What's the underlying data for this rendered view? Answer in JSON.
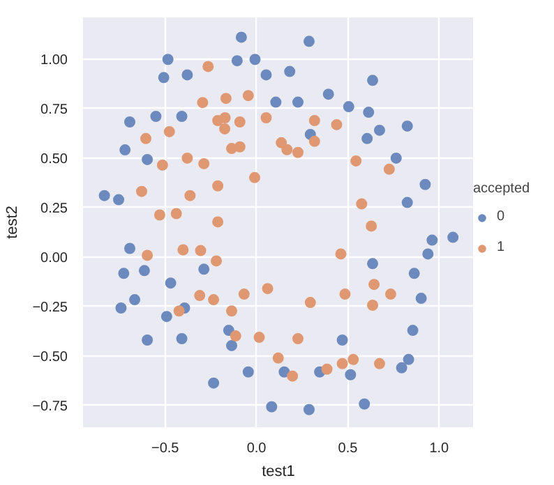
{
  "chart_data": {
    "type": "scatter",
    "xlabel": "test1",
    "ylabel": "test2",
    "legend_title": "accepted",
    "legend": "right",
    "grid": true,
    "marker": "circle",
    "xlim": [
      -0.95,
      1.19
    ],
    "ylim": [
      -0.86,
      1.21
    ],
    "xticks": [
      {
        "value": -0.5,
        "label": "−0.5"
      },
      {
        "value": 0,
        "label": "0.0"
      },
      {
        "value": 0.5,
        "label": "0.5"
      },
      {
        "value": 1,
        "label": "1.0"
      }
    ],
    "yticks": [
      {
        "value": -0.75,
        "label": "−0.75"
      },
      {
        "value": -0.5,
        "label": "−0.50"
      },
      {
        "value": -0.25,
        "label": "−0.25"
      },
      {
        "value": 0,
        "label": "0.00"
      },
      {
        "value": 0.25,
        "label": "0.25"
      },
      {
        "value": 0.5,
        "label": "0.50"
      },
      {
        "value": 0.75,
        "label": "0.75"
      },
      {
        "value": 1,
        "label": "1.00"
      }
    ],
    "series": [
      {
        "name": "0",
        "color": "#6c8abd",
        "x": [
          -0.083,
          -0.485,
          -0.106,
          -0.008,
          -0.508,
          -0.379,
          0.053,
          0.106,
          -0.694,
          -0.551,
          -0.409,
          -0.72,
          -0.598,
          -0.833,
          -0.755,
          -0.694,
          0.288,
          0.182,
          0.636,
          0.227,
          0.394,
          0.505,
          0.614,
          0.295,
          0.606,
          0.674,
          0.826,
          0.765,
          0.924,
          0.826,
          0.962,
          1.076,
          -0.727,
          -0.614,
          -0.288,
          -0.47,
          -0.667,
          -0.742,
          -0.394,
          -0.492,
          -0.598,
          -0.409,
          -0.152,
          -0.136,
          -0.045,
          -0.235,
          0.083,
          0.939,
          0.636,
          0.864,
          0.902,
          0.856,
          0.47,
          0.833,
          0.795,
          0.346,
          0.515,
          0.152,
          0.288,
          0.591
        ],
        "values": [
          1.11,
          0.998,
          0.991,
          0.998,
          0.906,
          0.92,
          0.92,
          0.782,
          0.682,
          0.71,
          0.71,
          0.541,
          0.492,
          0.31,
          0.289,
          0.043,
          1.089,
          0.937,
          0.892,
          0.782,
          0.822,
          0.759,
          0.731,
          0.619,
          0.598,
          0.64,
          0.661,
          0.499,
          0.366,
          0.275,
          0.085,
          0.099,
          -0.083,
          -0.069,
          -0.062,
          -0.132,
          -0.216,
          -0.258,
          -0.258,
          -0.301,
          -0.42,
          -0.413,
          -0.371,
          -0.448,
          -0.581,
          -0.637,
          -0.757,
          0.015,
          -0.034,
          -0.083,
          -0.209,
          -0.371,
          -0.42,
          -0.518,
          -0.56,
          -0.581,
          -0.595,
          -0.581,
          -0.771,
          -0.743
        ]
      },
      {
        "name": "1",
        "color": "#e09872",
        "x": [
          -0.265,
          -0.295,
          -0.167,
          -0.045,
          0.053,
          -0.212,
          -0.172,
          -0.174,
          -0.091,
          -0.606,
          -0.477,
          -0.379,
          -0.288,
          -0.515,
          -0.136,
          -0.091,
          -0.01,
          -0.212,
          -0.629,
          -0.364,
          -0.53,
          -0.439,
          -0.212,
          -0.402,
          -0.306,
          0.318,
          0.439,
          0.136,
          0.167,
          0.227,
          0.318,
          0.545,
          0.727,
          0.576,
          0.629,
          -0.598,
          -0.22,
          -0.311,
          -0.235,
          -0.424,
          -0.136,
          -0.068,
          0.061,
          -0.114,
          0.015,
          0.119,
          0.462,
          0.644,
          0.485,
          0.735,
          0.636,
          0.295,
          0.227,
          0.197,
          0.386,
          0.47,
          0.53,
          0.674
        ],
        "values": [
          0.962,
          0.78,
          0.801,
          0.815,
          0.703,
          0.689,
          0.703,
          0.647,
          0.682,
          0.598,
          0.633,
          0.499,
          0.471,
          0.464,
          0.548,
          0.556,
          0.401,
          0.359,
          0.331,
          0.31,
          0.212,
          0.219,
          0.177,
          0.036,
          0.032,
          0.689,
          0.668,
          0.577,
          0.542,
          0.528,
          0.584,
          0.485,
          0.443,
          0.268,
          0.156,
          0.008,
          -0.02,
          -0.195,
          -0.216,
          -0.273,
          -0.273,
          -0.188,
          -0.16,
          -0.399,
          -0.406,
          -0.511,
          0.015,
          -0.139,
          -0.188,
          -0.188,
          -0.244,
          -0.23,
          -0.413,
          -0.602,
          -0.567,
          -0.539,
          -0.518,
          -0.539
        ]
      }
    ]
  }
}
